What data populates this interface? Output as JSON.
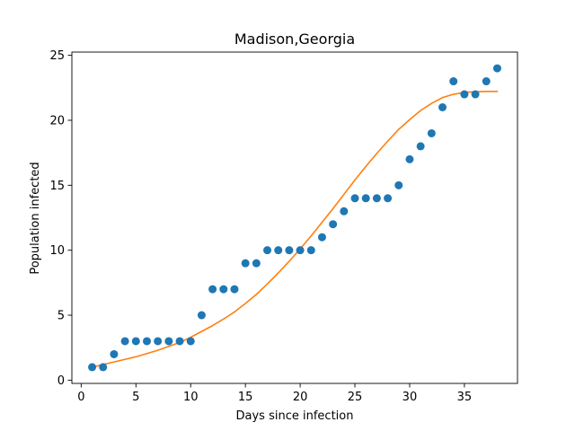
{
  "chart_data": {
    "type": "scatter",
    "title": "Madison,Georgia",
    "xlabel": "Days since infection",
    "ylabel": "Population infected",
    "xlim": [
      -0.85,
      39.85
    ],
    "ylim": [
      -0.25,
      25.25
    ],
    "xticks": [
      0,
      5,
      10,
      15,
      20,
      25,
      30,
      35
    ],
    "yticks": [
      0,
      5,
      10,
      15,
      20,
      25
    ],
    "grid": false,
    "legend": "none",
    "series": [
      {
        "kind": "scatter",
        "color": "#1f77b4",
        "x": [
          1,
          2,
          3,
          4,
          5,
          6,
          7,
          8,
          9,
          10,
          11,
          12,
          13,
          14,
          15,
          16,
          17,
          18,
          19,
          20,
          21,
          22,
          23,
          24,
          25,
          26,
          27,
          28,
          29,
          30,
          31,
          32,
          33,
          34,
          35,
          36,
          37,
          38
        ],
        "y": [
          1,
          1,
          2,
          3,
          3,
          3,
          3,
          3,
          3,
          3,
          5,
          7,
          7,
          7,
          9,
          9,
          10,
          10,
          10,
          10,
          10,
          11,
          12,
          13,
          14,
          14,
          14,
          14,
          15,
          17,
          18,
          19,
          21,
          23,
          22,
          22,
          23,
          24
        ]
      },
      {
        "kind": "line",
        "color": "#ff7f0e",
        "x": [
          1,
          2,
          3,
          4,
          5,
          6,
          7,
          8,
          9,
          10,
          11,
          12,
          13,
          14,
          15,
          16,
          17,
          18,
          19,
          20,
          21,
          22,
          23,
          24,
          25,
          26,
          27,
          28,
          29,
          30,
          31,
          32,
          33,
          34,
          35,
          36,
          37,
          38
        ],
        "y": [
          1.0,
          1.2,
          1.4,
          1.6,
          1.8,
          2.05,
          2.3,
          2.6,
          2.9,
          3.3,
          3.75,
          4.2,
          4.7,
          5.25,
          5.9,
          6.6,
          7.4,
          8.25,
          9.15,
          10.1,
          11.1,
          12.15,
          13.2,
          14.3,
          15.4,
          16.45,
          17.45,
          18.4,
          19.3,
          20.05,
          20.75,
          21.3,
          21.75,
          22.0,
          22.15,
          22.2,
          22.22,
          22.22
        ]
      }
    ]
  }
}
